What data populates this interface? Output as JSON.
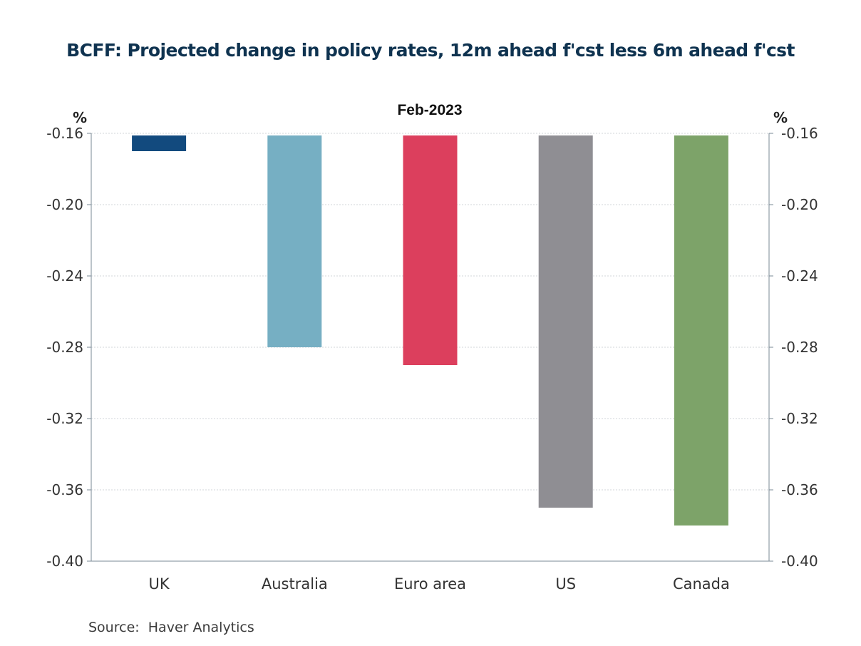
{
  "chart_data": {
    "type": "bar",
    "title": "BCFF: Projected change in policy rates, 12m ahead f'cst less 6m ahead f'cst",
    "subtitle": "Feb-2023",
    "ylabel_left": "%",
    "ylabel_right": "%",
    "categories": [
      "UK",
      "Australia",
      "Euro area",
      "US",
      "Canada"
    ],
    "values": [
      -0.17,
      -0.28,
      -0.29,
      -0.37,
      -0.38
    ],
    "colors": [
      "#124a7e",
      "#76afc3",
      "#dc3f5d",
      "#8f8e93",
      "#7da369"
    ],
    "ylim": [
      -0.4,
      -0.16
    ],
    "yticks": [
      -0.16,
      -0.2,
      -0.24,
      -0.28,
      -0.32,
      -0.36,
      -0.4
    ],
    "ytick_labels": [
      "-0.16",
      "-0.20",
      "-0.24",
      "-0.28",
      "-0.32",
      "-0.36",
      "-0.40"
    ],
    "grid": true,
    "legend": "none"
  },
  "source": {
    "label": "Source:",
    "text": "Haver Analytics"
  }
}
